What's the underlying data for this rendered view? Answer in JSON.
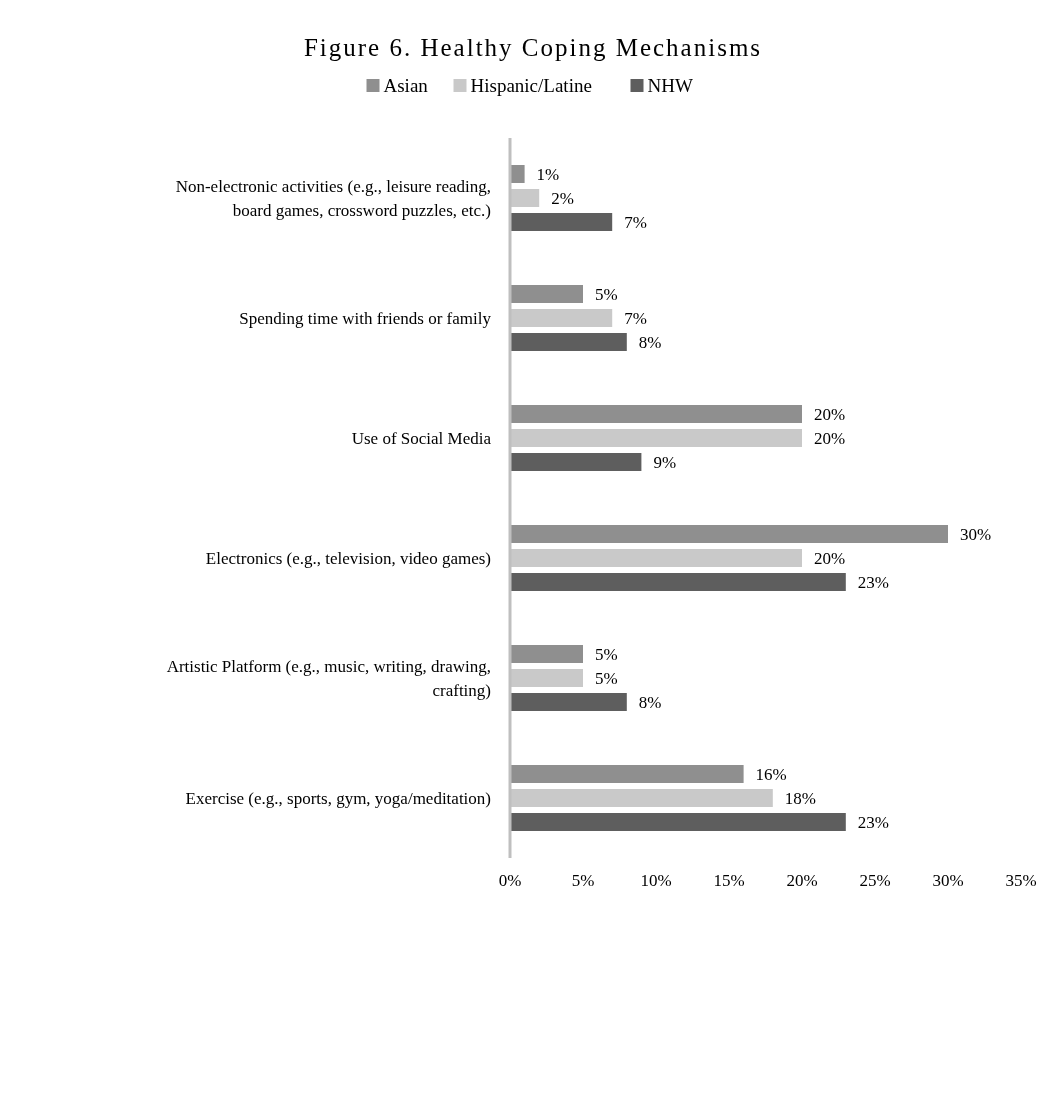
{
  "chart_data": {
    "type": "bar",
    "orientation": "horizontal",
    "title": "Figure 6. Healthy Coping Mechanisms",
    "categories": [
      "Non-electronic activities (e.g., leisure reading, board games, crossword puzzles, etc.)",
      "Spending time with friends or family",
      "Use of Social Media",
      "Electronics (e.g., television, video games)",
      "Artistic Platform (e.g., music, writing, drawing, crafting)",
      "Exercise (e.g., sports, gym, yoga/meditation)"
    ],
    "series": [
      {
        "name": "Asian",
        "color": "#8f8f8f",
        "values": [
          1,
          5,
          20,
          30,
          5,
          16
        ]
      },
      {
        "name": "Hispanic/Latine",
        "color": "#c9c9c9",
        "values": [
          2,
          7,
          20,
          20,
          5,
          18
        ]
      },
      {
        "name": "NHW",
        "color": "#5e5e5e",
        "values": [
          7,
          8,
          9,
          23,
          8,
          23
        ]
      }
    ],
    "xlim": [
      0,
      35
    ],
    "xticks": [
      {
        "value": 0,
        "label": "0%"
      },
      {
        "value": 5,
        "label": "5%"
      },
      {
        "value": 10,
        "label": "10%"
      },
      {
        "value": 15,
        "label": "15%"
      },
      {
        "value": 20,
        "label": "20%"
      },
      {
        "value": 25,
        "label": "25%"
      },
      {
        "value": 30,
        "label": "30%"
      },
      {
        "value": 35,
        "label": "35%"
      }
    ],
    "value_labels": [
      [
        "1%",
        "5%",
        "20%",
        "30%",
        "5%",
        "16%"
      ],
      [
        "2%",
        "7%",
        "20%",
        "20%",
        "5%",
        "18%"
      ],
      [
        "7%",
        "8%",
        "9%",
        "23%",
        "8%",
        "23%"
      ]
    ],
    "legend": "top",
    "grid": false
  }
}
